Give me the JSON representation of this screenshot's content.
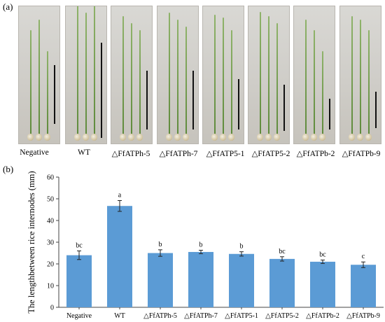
{
  "panel_a": {
    "label": "(a)",
    "samples": [
      "Negative",
      "WT",
      "△FfATPh-5",
      "△FfATPh-7",
      "△FfATP5-1",
      "△FfATP5-2",
      "△FfATPb-2",
      "△FfATPb-9"
    ]
  },
  "panel_b": {
    "label": "(b)"
  },
  "chart_data": {
    "type": "bar",
    "title": "",
    "xlabel": "",
    "ylabel": "The lengthbetween rice internodes  (mm)",
    "categories": [
      "Negative",
      "WT",
      "△FfATPh-5",
      "△FfATPh-7",
      "△FfATP5-1",
      "△FfATP5-2",
      "△FfATPb-2",
      "△FfATPb-9"
    ],
    "values": [
      24.0,
      46.7,
      25.0,
      25.5,
      24.6,
      22.3,
      21.0,
      19.6
    ],
    "errors": [
      2.0,
      2.5,
      1.5,
      0.8,
      1.0,
      1.0,
      0.8,
      1.3
    ],
    "significance_letters": [
      "bc",
      "a",
      "b",
      "b",
      "b",
      "bc",
      "bc",
      "c"
    ],
    "ylim": [
      0,
      60
    ],
    "yticks": [
      0,
      10,
      20,
      30,
      40,
      50,
      60
    ],
    "bar_color": "#5b9bd5",
    "grid": false
  }
}
